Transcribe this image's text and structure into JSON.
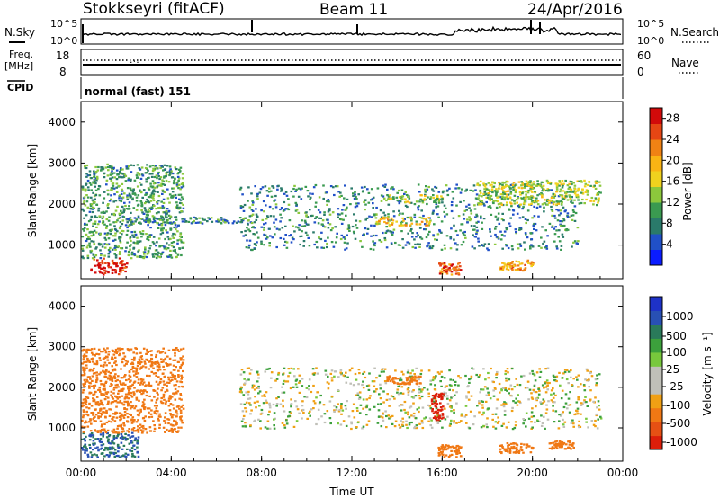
{
  "header": {
    "station": "Stokkseyri (fitACF)",
    "beam": "Beam 11",
    "date": "24/Apr/2016"
  },
  "info_panels": {
    "nsky_label": "N.Sky",
    "nsky_tick_high": "10^5",
    "nsky_tick_low": "10^0",
    "nsearch_label": "N.Search",
    "freq_label_1": "Freq.",
    "freq_label_2": "[MHz]",
    "freq_tick_high": "18",
    "freq_tick_low": "8",
    "nave_tick_high": "60",
    "nave_tick_low": "0",
    "nave_label": "Nave",
    "cpid_label": "CPID",
    "cpid_value": "normal (fast) 151"
  },
  "chart_data": [
    {
      "type": "heatmap",
      "panel": "power",
      "ylabel": "Slant Range [km]",
      "xlabel": "",
      "x_ticks": [
        "00:00",
        "04:00",
        "08:00",
        "12:00",
        "16:00",
        "20:00",
        "00:00"
      ],
      "y_ticks": [
        1000,
        2000,
        3000,
        4000
      ],
      "ylim": [
        180,
        4500
      ],
      "xlim_hours": [
        0,
        24
      ],
      "colorbar": {
        "label": "Power [dB]",
        "ticks": [
          4,
          8,
          12,
          16,
          20,
          24,
          28
        ],
        "range": [
          0,
          30
        ],
        "colors": [
          "#0a1cff",
          "#2050c8",
          "#2a7a6a",
          "#3a9a50",
          "#8cc83c",
          "#f0d21e",
          "#fab414",
          "#f08214",
          "#e64614",
          "#d20a0a"
        ]
      },
      "features": [
        {
          "name": "early-ground-scatter",
          "hours": [
            0.4,
            2.0
          ],
          "range_km": [
            300,
            700
          ],
          "level": 28
        },
        {
          "name": "morning-spread-echoes",
          "hours": [
            0,
            4.5
          ],
          "range_km": [
            700,
            3000
          ],
          "level": 10
        },
        {
          "name": "band-1600km",
          "hours": [
            2.0,
            7.5
          ],
          "range_km": [
            1550,
            1700
          ],
          "level": 8
        },
        {
          "name": "arc-echoes",
          "hours": [
            7,
            22
          ],
          "range_km": [
            900,
            2500
          ],
          "level": 8
        },
        {
          "name": "noon-1600-band",
          "hours": [
            13,
            15.5
          ],
          "range_km": [
            1500,
            1700
          ],
          "level": 18
        },
        {
          "name": "noon-2100-band",
          "hours": [
            13.2,
            16
          ],
          "range_km": [
            2050,
            2250
          ],
          "level": 14
        },
        {
          "name": "1600ut-near-range",
          "hours": [
            15.8,
            16.8
          ],
          "range_km": [
            300,
            600
          ],
          "level": 24
        },
        {
          "name": "1900ut-near-range",
          "hours": [
            18.5,
            20.0
          ],
          "range_km": [
            400,
            650
          ],
          "level": 20
        },
        {
          "name": "evening-high-range",
          "hours": [
            17.5,
            23
          ],
          "range_km": [
            2000,
            2600
          ],
          "level": 14
        }
      ]
    },
    {
      "type": "heatmap",
      "panel": "velocity",
      "ylabel": "Slant Range [km]",
      "xlabel": "Time UT",
      "x_ticks": [
        "00:00",
        "04:00",
        "08:00",
        "12:00",
        "16:00",
        "20:00",
        "00:00"
      ],
      "y_ticks": [
        1000,
        2000,
        3000,
        4000
      ],
      "ylim": [
        180,
        4500
      ],
      "xlim_hours": [
        0,
        24
      ],
      "colorbar": {
        "label": "Velocity [m s⁻¹]",
        "ticks": [
          "1000",
          "500",
          "100",
          "25",
          "-25",
          "-100",
          "-500",
          "-1000"
        ],
        "colors": [
          "#1e32c8",
          "#2850b4",
          "#2a7a5a",
          "#3ca03c",
          "#78c83c",
          "#c0c0b8",
          "#c0c0b8",
          "#f0a014",
          "#f07814",
          "#e65014",
          "#dc1e0a"
        ]
      },
      "features": [
        {
          "name": "morning-positive",
          "hours": [
            0,
            2.5
          ],
          "range_km": [
            300,
            900
          ],
          "velocity": 300
        },
        {
          "name": "morning-negative",
          "hours": [
            0,
            4.5
          ],
          "range_km": [
            900,
            3000
          ],
          "velocity": -300
        },
        {
          "name": "ground-scatter-arcs",
          "hours": [
            7,
            23
          ],
          "range_km": [
            1000,
            2500
          ],
          "velocity": 0
        },
        {
          "name": "noon-negative-2100",
          "hours": [
            13.5,
            15
          ],
          "range_km": [
            2100,
            2300
          ],
          "velocity": -300
        },
        {
          "name": "1530-strong-negative",
          "hours": [
            15.5,
            16
          ],
          "range_km": [
            1200,
            1900
          ],
          "velocity": -1000
        },
        {
          "name": "1600-near-negative",
          "hours": [
            15.8,
            16.8
          ],
          "range_km": [
            300,
            600
          ],
          "velocity": -300
        },
        {
          "name": "1900-near-negative",
          "hours": [
            18.5,
            20
          ],
          "range_km": [
            400,
            650
          ],
          "velocity": -200
        },
        {
          "name": "2100-near-negative",
          "hours": [
            20.7,
            21.8
          ],
          "range_km": [
            500,
            700
          ],
          "velocity": -400
        }
      ]
    }
  ]
}
